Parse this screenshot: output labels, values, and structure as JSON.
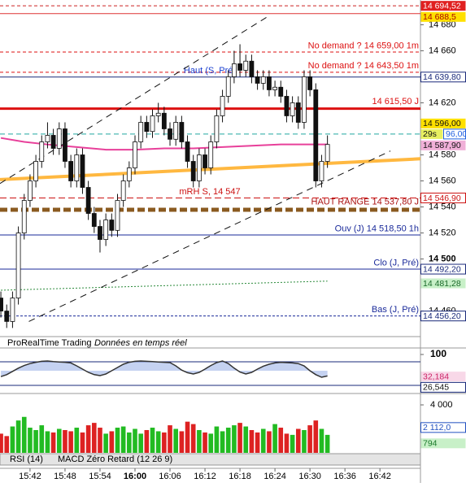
{
  "chart_data": {
    "type": "candlestick",
    "watermark": "ProRealTime Trading",
    "watermark_note": "Données en temps réel",
    "tabs": [
      "RSI (14)",
      "MACD Zéro Retard (12 26 9)"
    ],
    "x": [
      937,
      938,
      939,
      940,
      941,
      942,
      943,
      944,
      945,
      946,
      947,
      948,
      949,
      950,
      951,
      952,
      953,
      954,
      955,
      956,
      957,
      958,
      959,
      960,
      961,
      962,
      963,
      964,
      965,
      966,
      967,
      968,
      969,
      970,
      971,
      972,
      973,
      974,
      975,
      976,
      977,
      978,
      979,
      980,
      981,
      982,
      983,
      984,
      985,
      986,
      987,
      988,
      989,
      990,
      991,
      992,
      993
    ],
    "open": [
      14470,
      14460,
      14452,
      14470,
      14520,
      14545,
      14560,
      14575,
      14590,
      14595,
      14585,
      14600,
      14575,
      14560,
      14580,
      14555,
      14535,
      14525,
      14515,
      14530,
      14522,
      14545,
      14560,
      14570,
      14590,
      14605,
      14598,
      14610,
      14612,
      14600,
      14592,
      14605,
      14590,
      14575,
      14560,
      14580,
      14570,
      14590,
      14610,
      14625,
      14640,
      14650,
      14645,
      14652,
      14640,
      14635,
      14640,
      14630,
      14632,
      14625,
      14610,
      14620,
      14605,
      14640,
      14630,
      14560,
      14575
    ],
    "high": [
      14475,
      14465,
      14475,
      14525,
      14550,
      14565,
      14580,
      14595,
      14605,
      14600,
      14605,
      14605,
      14580,
      14585,
      14585,
      14560,
      14540,
      14530,
      14535,
      14535,
      14550,
      14565,
      14575,
      14595,
      14610,
      14610,
      14615,
      14620,
      14617,
      14605,
      14610,
      14610,
      14595,
      14580,
      14585,
      14585,
      14595,
      14615,
      14630,
      14645,
      14660,
      14665,
      14657,
      14657,
      14645,
      14645,
      14645,
      14637,
      14637,
      14630,
      14625,
      14625,
      14645,
      14645,
      14635,
      14580,
      14595
    ],
    "low": [
      14455,
      14447,
      14447,
      14465,
      14515,
      14540,
      14555,
      14570,
      14585,
      14580,
      14580,
      14570,
      14555,
      14555,
      14550,
      14530,
      14520,
      14505,
      14510,
      14517,
      14517,
      14540,
      14555,
      14565,
      14585,
      14593,
      14593,
      14605,
      14595,
      14587,
      14587,
      14585,
      14570,
      14555,
      14555,
      14565,
      14565,
      14585,
      14605,
      14620,
      14635,
      14640,
      14640,
      14635,
      14630,
      14630,
      14625,
      14625,
      14620,
      14605,
      14605,
      14600,
      14600,
      14625,
      14555,
      14555,
      14570
    ],
    "close": [
      14460,
      14452,
      14470,
      14520,
      14545,
      14560,
      14575,
      14590,
      14595,
      14585,
      14600,
      14575,
      14560,
      14580,
      14555,
      14535,
      14525,
      14515,
      14530,
      14522,
      14545,
      14560,
      14570,
      14590,
      14605,
      14598,
      14610,
      14612,
      14600,
      14592,
      14605,
      14590,
      14575,
      14560,
      14580,
      14570,
      14590,
      14610,
      14625,
      14640,
      14650,
      14645,
      14652,
      14640,
      14635,
      14640,
      14630,
      14632,
      14625,
      14610,
      14620,
      14605,
      14640,
      14630,
      14560,
      14575,
      14588
    ],
    "up_color": "#ffffff",
    "down_color": "#111111",
    "xlim": [
      936.85,
      1008.95
    ],
    "xticks": [
      {
        "value": 942,
        "label": "15:42"
      },
      {
        "value": 948,
        "label": "15:48"
      },
      {
        "value": 954,
        "label": "15:54"
      },
      {
        "value": 960,
        "label": "16:00",
        "bold": true
      },
      {
        "value": 966,
        "label": "16:06"
      },
      {
        "value": 972,
        "label": "16:12"
      },
      {
        "value": 978,
        "label": "16:18"
      },
      {
        "value": 984,
        "label": "16:24"
      },
      {
        "value": 990,
        "label": "16:30"
      },
      {
        "value": 996,
        "label": "16:36"
      },
      {
        "value": 1002,
        "label": "16:42"
      }
    ],
    "ylim": [
      14441,
      14699
    ],
    "yticks": [
      {
        "value": 14680,
        "label": "14 680"
      },
      {
        "value": 14660,
        "label": "14 660"
      },
      {
        "value": 14620,
        "label": "14 620"
      },
      {
        "value": 14580,
        "label": "14 580"
      },
      {
        "value": 14560,
        "label": "14 560"
      },
      {
        "value": 14540,
        "label": "14 540"
      },
      {
        "value": 14520,
        "label": "14 520"
      },
      {
        "value": 14500,
        "label": "14 500",
        "bold": true
      },
      {
        "value": 14460,
        "label": "14 460"
      }
    ],
    "levels": [
      {
        "value": 14694.52,
        "color": "#cc2222",
        "dash": "4,3",
        "width": 1
      },
      {
        "value": 14688.5,
        "color": "#dd3333",
        "width": 1
      },
      {
        "value": 14659,
        "label": "No demand ? 14 659,00 1m",
        "color": "#dd1111",
        "dash": "4,3",
        "width": 1,
        "align": "right"
      },
      {
        "value": 14643.5,
        "label": "No demand ? 14 643,50 1m",
        "color": "#dd1111",
        "dash": "4,3",
        "width": 1,
        "align": "right"
      },
      {
        "value": 14639.8,
        "label": "Haut (S, Pré)",
        "color": "#1a3fd0",
        "line_color": "#1a2a7a",
        "width": 1,
        "align": "center"
      },
      {
        "value": 14615.5,
        "label": "14 615,50 J",
        "color": "#dd1111",
        "width": 3,
        "align": "right"
      },
      {
        "value": 14596,
        "color": "#20a8a0",
        "dash": "6,4",
        "width": 1
      },
      {
        "value": 14546.9,
        "label": "mRH S, 14 547",
        "color": "#cc1111",
        "dash": "8,4",
        "width": 1,
        "align": "center"
      },
      {
        "value": 14537.8,
        "label": "HAUT RANGE 14 537,80 J",
        "color": "#aa1111",
        "line_color": "#8a5a20",
        "dash": "9,4",
        "width": 5,
        "align": "right"
      },
      {
        "value": 14518.5,
        "label": "Ouv (J) 14 518,50 1h",
        "color": "#1a2a9a",
        "width": 1,
        "align": "right"
      },
      {
        "value": 14492.2,
        "label": "Clo (J, Pré)",
        "color": "#1a2a9a",
        "width": 1,
        "align": "right"
      },
      {
        "value": 14456.2,
        "label": "Bas (J, Pré)",
        "color": "#1a2a9a",
        "dash": "3,2",
        "width": 1,
        "align": "right"
      }
    ],
    "lines": [
      {
        "color": "#e8409a",
        "width": 2,
        "x": [
          937,
          941,
          945,
          950,
          955,
          960,
          965,
          970,
          975,
          980,
          985,
          990,
          993
        ],
        "values": [
          14593,
          14590,
          14588,
          14586,
          14584,
          14584,
          14585,
          14585,
          14586,
          14587,
          14588,
          14588,
          14588
        ]
      },
      {
        "color": "#ffb840",
        "width": 4,
        "x": [
          936.85,
          1008.95
        ],
        "values": [
          14561,
          14577
        ]
      },
      {
        "color": "#2a8a3a",
        "width": 1,
        "dash": "2,2",
        "x": [
          937,
          993
        ],
        "values": [
          14476,
          14483
        ]
      },
      {
        "color": "#111111",
        "width": 1,
        "dash": "8,6",
        "x": [
          941.8,
          1003.8
        ],
        "values": [
          14452,
          14583
        ]
      },
      {
        "color": "#111111",
        "width": 1,
        "dash": "8,6",
        "x": [
          936.85,
          983.2
        ],
        "values": [
          14558,
          14687.5
        ]
      }
    ],
    "badges": [
      {
        "label": "14 694,52",
        "value": 14694.52,
        "background": "#e02020",
        "color": "#ffffff"
      },
      {
        "label": "14 688,5",
        "value": 14688.5,
        "background": "#ffe000",
        "color": "#aa0000"
      },
      {
        "label": "14 639,80",
        "value": 14639.8,
        "background": "#ffffff",
        "color": "#1a2a7a",
        "border": "#1a2a7a"
      },
      {
        "label": "29s",
        "value": 14596,
        "background": "#e8f060",
        "color": "#111111"
      },
      {
        "label": "96,00",
        "value": 14596,
        "background": "#ffffff",
        "color": "#2060e0",
        "border": "#2060e0"
      },
      {
        "label": "14 587,90",
        "value": 14587.9,
        "background": "#f0b0d8",
        "color": "#111111"
      },
      {
        "label": "14 596,00",
        "value": 14596,
        "background": "#ffe000",
        "color": "#111111"
      },
      {
        "label": "14 546,90",
        "value": 14546.9,
        "background": "#ffffff",
        "color": "#cc1111",
        "border": "#cc1111"
      },
      {
        "label": "14 492,20",
        "value": 14492.2,
        "background": "#ffffff",
        "color": "#1a2a7a",
        "border": "#1a2a7a"
      },
      {
        "label": "14 481,28",
        "value": 14481.28,
        "background": "#c8f0c8",
        "color": "#1a6a2a"
      },
      {
        "label": "14 456,20",
        "value": 14456.2,
        "background": "#ffffff",
        "color": "#1a2a7a",
        "border": "#1a2a7a"
      }
    ],
    "oscillator": {
      "values": [
        32,
        38,
        48,
        58,
        66,
        72,
        76,
        79,
        80,
        78,
        77,
        76,
        74,
        65,
        55,
        45,
        38,
        35,
        40,
        50,
        60,
        70,
        76,
        79,
        80,
        79,
        78,
        77,
        76,
        75,
        65,
        52,
        44,
        40,
        45,
        55,
        66,
        75,
        80,
        72,
        58,
        46,
        40,
        45,
        55,
        64,
        70,
        74,
        76,
        75,
        74,
        72,
        65,
        50,
        38,
        30,
        34
      ],
      "color": "#333333",
      "fill": "#9fb4e8",
      "ylim": [
        0,
        100
      ],
      "yticks": [
        100
      ],
      "badges": [
        {
          "label": "32,184",
          "value": 32.184,
          "background": "#f8d8e8",
          "color": "#cc2266"
        },
        {
          "label": "26,545",
          "value": 26.545,
          "background": "#ffffff",
          "color": "#111111",
          "border": "#1a2a7a"
        }
      ]
    },
    "volume": {
      "values": [
        1600,
        1400,
        2200,
        2700,
        3000,
        2100,
        1900,
        2300,
        1800,
        1700,
        2000,
        1900,
        1800,
        2100,
        1700,
        2300,
        2500,
        2100,
        1600,
        1800,
        2100,
        2200,
        1700,
        2000,
        1600,
        1900,
        2100,
        1800,
        1700,
        2300,
        2000,
        1800,
        2600,
        2400,
        1900,
        1700,
        1600,
        2200,
        1800,
        2100,
        2300,
        2500,
        2200,
        1900,
        1700,
        2000,
        1800,
        2400,
        2100,
        1600,
        1500,
        2000,
        1900,
        2300,
        2700,
        2000,
        1500
      ],
      "up_color": "#22bb22",
      "down_color": "#dd2222",
      "ylim": [
        0,
        4000
      ],
      "yticks": [
        {
          "value": 4000,
          "label": "4 000"
        }
      ],
      "badges": [
        {
          "label": "2 112,0",
          "value": 2112,
          "background": "#ffffff",
          "color": "#2050c0",
          "border": "#2050c0"
        },
        {
          "label": "794",
          "value": 794,
          "background": "#c8f0c8",
          "color": "#1a7a2a"
        }
      ]
    }
  }
}
